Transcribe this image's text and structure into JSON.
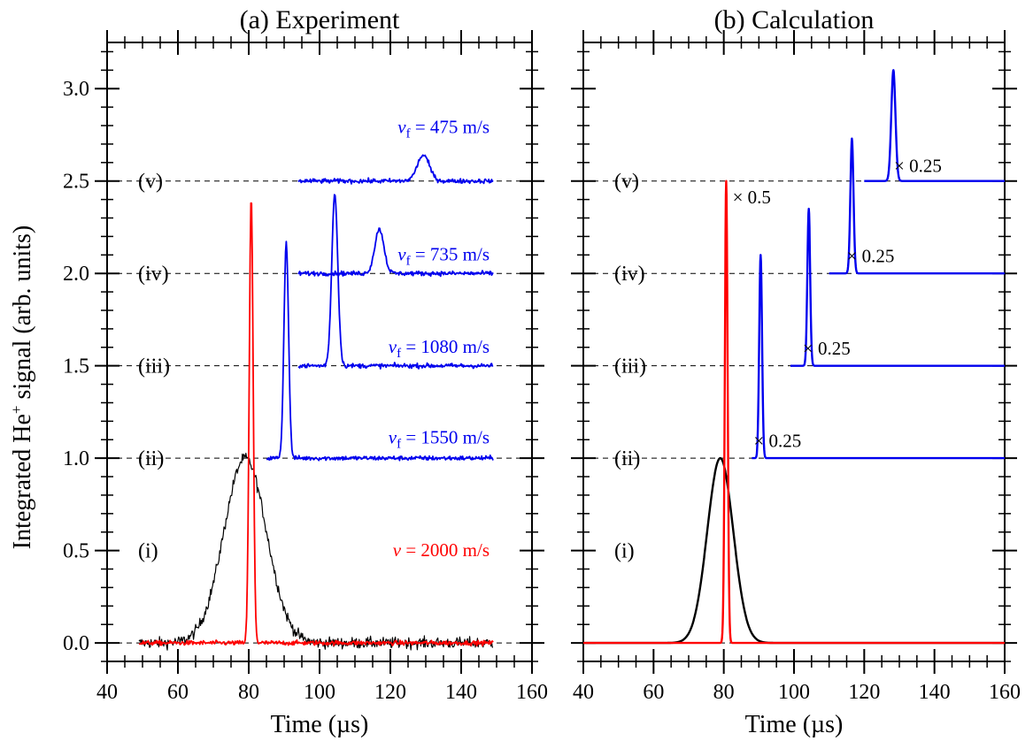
{
  "colors": {
    "red": "#ff0000",
    "blue": "#0000ee",
    "black": "#000000",
    "baseline": "#000000"
  },
  "chart_data": [
    {
      "type": "line",
      "title": "(a)  Experiment",
      "xlabel": "Time (µs)",
      "ylabel_main": "Integrated He",
      "ylabel_sup": "+",
      "ylabel_rest": " signal (arb. units)",
      "xlim": [
        40,
        160
      ],
      "ylim": [
        -0.1,
        3.25
      ],
      "xticks": [
        "40",
        "60",
        "80",
        "100",
        "120",
        "140",
        "160"
      ],
      "yticks": [
        "0.0",
        "0.5",
        "1.0",
        "1.5",
        "2.0",
        "2.5",
        "3.0"
      ],
      "row_labels": [
        "(i)",
        "(ii)",
        "(iii)",
        "(iv)",
        "(v)"
      ],
      "annotations": [
        {
          "main": "v",
          "sub": "",
          "text": " = 2000 m/s",
          "color": "red",
          "x": 148,
          "y": 0.47
        },
        {
          "main": "v",
          "sub": "f",
          "text": " = 1550 m/s",
          "color": "blue",
          "x": 148,
          "y": 1.08
        },
        {
          "main": "v",
          "sub": "f",
          "text": " = 1080 m/s",
          "color": "blue",
          "x": 148,
          "y": 1.57
        },
        {
          "main": "v",
          "sub": "f",
          "text": " = 735 m/s",
          "color": "blue",
          "x": 148,
          "y": 2.07
        },
        {
          "main": "v",
          "sub": "f",
          "text": " = 475 m/s",
          "color": "blue",
          "x": 148,
          "y": 2.76
        }
      ],
      "series": [
        {
          "color": "black",
          "noise": 0.03,
          "x_start": 49,
          "x_end": 149,
          "baseline": 0.0,
          "peak_center": 79,
          "peak_sigma": 6.0,
          "peak_height": 1.0,
          "dashed_from": 40,
          "dashed_to": 160
        },
        {
          "color": "red",
          "noise": 0.012,
          "x_start": 49,
          "x_end": 149,
          "baseline": 0.0,
          "peak_center": 80.7,
          "peak_sigma": 0.55,
          "peak_height": 2.42
        },
        {
          "color": "blue",
          "noise": 0.012,
          "x_start": 85,
          "x_end": 149,
          "baseline": 1.0,
          "peak_center": 90.6,
          "peak_sigma": 0.65,
          "peak_height": 1.17,
          "dashed_from": 149,
          "dashed_to": 160
        },
        {
          "color": "blue",
          "noise": 0.012,
          "x_start": 94,
          "x_end": 149,
          "baseline": 1.5,
          "peak_center": 104.3,
          "peak_sigma": 0.85,
          "peak_height": 0.93,
          "dashed_from": 149,
          "dashed_to": 160
        },
        {
          "color": "blue",
          "noise": 0.012,
          "x_start": 94,
          "x_end": 149,
          "baseline": 2.0,
          "peak_center": 116.9,
          "peak_sigma": 1.3,
          "peak_height": 0.24,
          "dashed_from": 149,
          "dashed_to": 160
        },
        {
          "color": "blue",
          "noise": 0.012,
          "x_start": 94,
          "x_end": 149,
          "baseline": 2.5,
          "peak_center": 129.3,
          "peak_sigma": 1.7,
          "peak_height": 0.14,
          "dashed_from": 149,
          "dashed_to": 160
        }
      ]
    },
    {
      "type": "line",
      "title": "(b)  Calculation",
      "xlabel": "Time (µs)",
      "xlim": [
        40,
        160
      ],
      "ylim": [
        -0.1,
        3.25
      ],
      "xticks": [
        "40",
        "60",
        "80",
        "100",
        "120",
        "140",
        "160"
      ],
      "row_labels": [
        "(i)",
        "(ii)",
        "(iii)",
        "(iv)",
        "(v)"
      ],
      "annotations": [
        {
          "main": "× 0.5",
          "sub": "",
          "text": "",
          "color": "black",
          "x": 82.5,
          "y": 2.38,
          "anchor": "start"
        },
        {
          "main": "× 0.25",
          "sub": "",
          "text": "",
          "color": "black",
          "x": 88.5,
          "y": 1.06,
          "anchor": "start"
        },
        {
          "main": "× 0.25",
          "sub": "",
          "text": "",
          "color": "black",
          "x": 102.5,
          "y": 1.56,
          "anchor": "start"
        },
        {
          "main": "× 0.25",
          "sub": "",
          "text": "",
          "color": "black",
          "x": 115,
          "y": 2.06,
          "anchor": "start"
        },
        {
          "main": "× 0.25",
          "sub": "",
          "text": "",
          "color": "black",
          "x": 128.5,
          "y": 2.55,
          "anchor": "start"
        }
      ],
      "series": [
        {
          "color": "black",
          "noise": 0,
          "x_start": 40,
          "x_end": 160,
          "baseline": 0.0,
          "peak_center": 79,
          "peak_sigma": 3.7,
          "peak_height": 1.0
        },
        {
          "color": "red",
          "noise": 0,
          "x_start": 40,
          "x_end": 160,
          "baseline": 0.0,
          "peak_center": 80.7,
          "peak_sigma": 0.4,
          "peak_height": 2.5
        },
        {
          "color": "blue",
          "noise": 0,
          "x_start": 88,
          "x_end": 160,
          "baseline": 1.0,
          "peak_center": 90.5,
          "peak_sigma": 0.4,
          "peak_height": 1.1
        },
        {
          "color": "blue",
          "noise": 0,
          "x_start": 99,
          "x_end": 160,
          "baseline": 1.5,
          "peak_center": 104.2,
          "peak_sigma": 0.4,
          "peak_height": 0.85
        },
        {
          "color": "blue",
          "noise": 0,
          "x_start": 110,
          "x_end": 160,
          "baseline": 2.0,
          "peak_center": 116.5,
          "peak_sigma": 0.45,
          "peak_height": 0.73
        },
        {
          "color": "blue",
          "noise": 0,
          "x_start": 120,
          "x_end": 160,
          "baseline": 2.5,
          "peak_center": 128.3,
          "peak_sigma": 0.6,
          "peak_height": 0.6
        }
      ]
    }
  ]
}
